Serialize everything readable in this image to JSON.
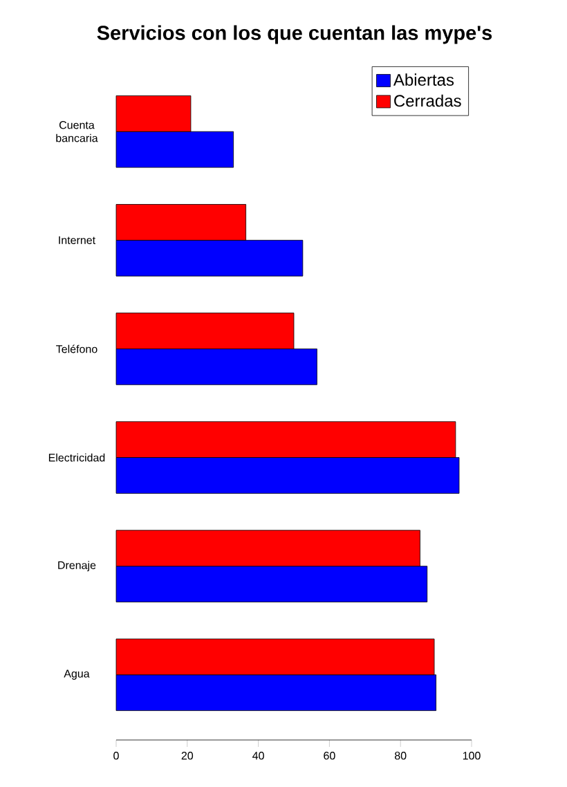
{
  "chart_data": {
    "type": "bar",
    "orientation": "horizontal",
    "title": "Servicios con los que cuentan las mype's",
    "categories": [
      "Cuenta bancaria",
      "Internet",
      "Teléfono",
      "Electricidad",
      "Drenaje",
      "Agua"
    ],
    "series": [
      {
        "name": "Abiertas",
        "color": "#0000ff",
        "values": [
          33,
          52.5,
          56.5,
          96.5,
          87.5,
          90
        ]
      },
      {
        "name": "Cerradas",
        "color": "#ff0000",
        "values": [
          21,
          36.5,
          50,
          95.5,
          85.5,
          89.5
        ]
      }
    ],
    "xlim": [
      0,
      100
    ],
    "xticks": [
      0,
      20,
      40,
      60,
      80,
      100
    ],
    "legend": "top right"
  }
}
